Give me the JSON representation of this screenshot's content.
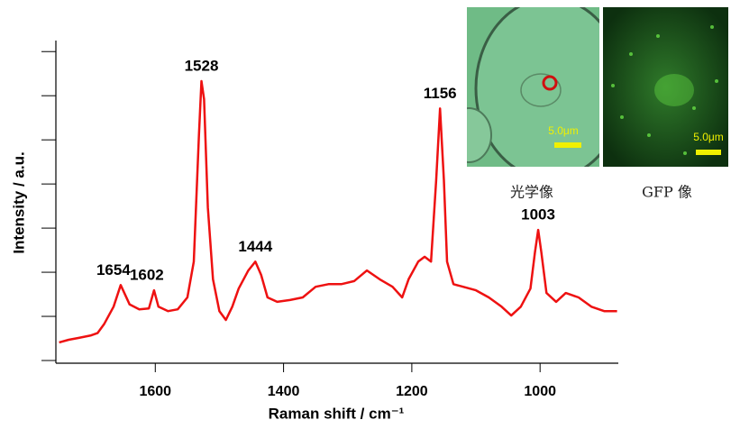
{
  "chart_data": {
    "type": "line",
    "xlabel": "Raman shift / cm⁻¹",
    "ylabel": "Intensity / a.u.",
    "color": "#ee1111",
    "xlim": [
      1755,
      878
    ],
    "xticks": [
      1600,
      1400,
      1200,
      1000
    ],
    "ylim": [
      0,
      7.25
    ],
    "yticks": [
      0,
      1,
      2,
      3,
      4,
      5,
      6,
      7
    ],
    "x": [
      1750,
      1735,
      1720,
      1700,
      1690,
      1680,
      1665,
      1654,
      1640,
      1625,
      1610,
      1602,
      1595,
      1580,
      1565,
      1550,
      1540,
      1532,
      1528,
      1524,
      1518,
      1510,
      1500,
      1490,
      1480,
      1470,
      1455,
      1444,
      1435,
      1425,
      1410,
      1390,
      1370,
      1350,
      1330,
      1310,
      1290,
      1270,
      1250,
      1230,
      1215,
      1205,
      1190,
      1180,
      1170,
      1162,
      1156,
      1150,
      1145,
      1135,
      1120,
      1100,
      1080,
      1060,
      1045,
      1030,
      1015,
      1008,
      1003,
      998,
      990,
      975,
      960,
      940,
      920,
      900,
      880
    ],
    "values": [
      0.41,
      0.47,
      0.51,
      0.57,
      0.62,
      0.82,
      1.22,
      1.71,
      1.27,
      1.16,
      1.18,
      1.59,
      1.22,
      1.12,
      1.16,
      1.43,
      2.24,
      5.1,
      6.33,
      5.92,
      3.47,
      1.84,
      1.12,
      0.92,
      1.22,
      1.63,
      2.04,
      2.24,
      1.94,
      1.43,
      1.33,
      1.37,
      1.43,
      1.67,
      1.73,
      1.73,
      1.8,
      2.04,
      1.84,
      1.67,
      1.43,
      1.84,
      2.24,
      2.35,
      2.24,
      4.08,
      5.71,
      4.08,
      2.24,
      1.73,
      1.67,
      1.59,
      1.43,
      1.22,
      1.02,
      1.22,
      1.63,
      2.45,
      2.96,
      2.45,
      1.53,
      1.33,
      1.53,
      1.43,
      1.22,
      1.12,
      1.12
    ],
    "peaks": [
      1654,
      1602,
      1528,
      1444,
      1156,
      1003
    ],
    "insets": [
      {
        "caption": "光学像",
        "scale_bar": "5.0μm"
      },
      {
        "caption": "GFP 像",
        "scale_bar": "5.0μm"
      }
    ]
  }
}
